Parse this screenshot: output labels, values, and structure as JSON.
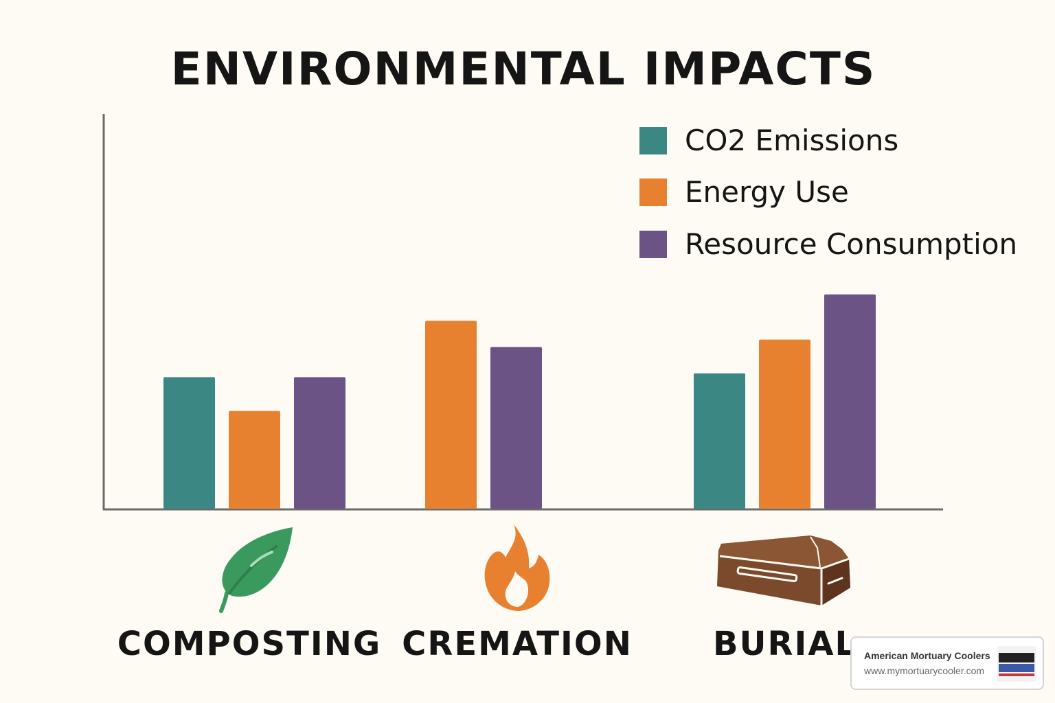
{
  "chart_data": {
    "type": "bar",
    "title": "ENVIRONMENTAL IMPACTS",
    "xlabel": "",
    "ylabel": "",
    "categories": [
      "COMPOSTING",
      "CREMATION",
      "BURIAL"
    ],
    "series": [
      {
        "name": "CO2 Emissions",
        "color": "#3a8783",
        "values": [
          3.5,
          null,
          3.6
        ]
      },
      {
        "name": "Energy Use",
        "color": "#e8812f",
        "values": [
          2.6,
          5.0,
          4.5
        ]
      },
      {
        "name": "Resource Consumption",
        "color": "#6c5385",
        "values": [
          3.5,
          4.3,
          5.7
        ]
      }
    ],
    "ylim": [
      0,
      10.5
    ],
    "grid": false,
    "legend_position": "top-right",
    "category_icons": [
      "leaf-icon",
      "flame-icon",
      "casket-icon"
    ]
  },
  "watermark": {
    "name": "American Mortuary Coolers",
    "url": "www.mymortuarycooler.com"
  }
}
